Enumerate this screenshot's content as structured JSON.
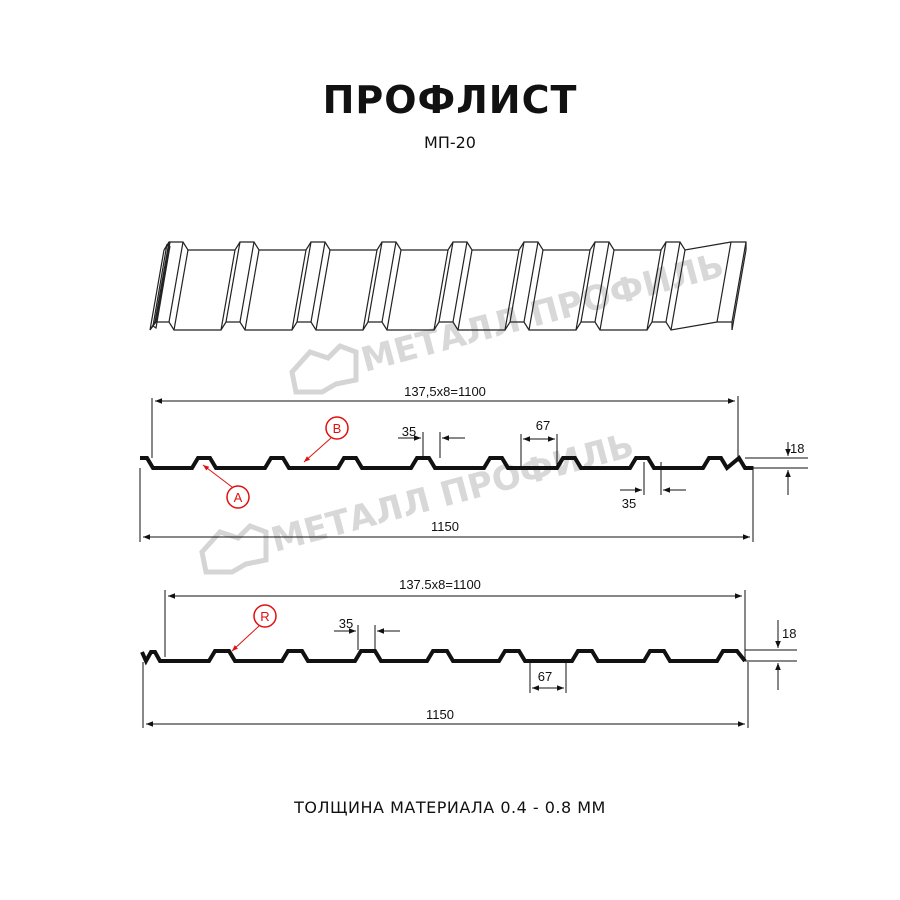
{
  "title": "ПРОФЛИСТ",
  "subtitle": "МП-20",
  "footer": "ТОЛЩИНА МАТЕРИАЛА 0.4 - 0.8 ММ",
  "watermark": "МЕТАЛЛ ПРОФИЛЬ",
  "colors": {
    "line": "#111111",
    "marker": "#e01010",
    "watermark": "#cfcfcf"
  },
  "profile_a": {
    "working_width": "137,5x8=1100",
    "total_width": "1150",
    "crest_width": "35",
    "valley_width": "67",
    "crest_width_2": "35",
    "height": "18",
    "markers": [
      "A",
      "B"
    ]
  },
  "profile_b": {
    "working_width": "137.5x8=1100",
    "total_width": "1150",
    "crest_width": "35",
    "valley_width": "67",
    "height": "18",
    "markers": [
      "R"
    ]
  }
}
